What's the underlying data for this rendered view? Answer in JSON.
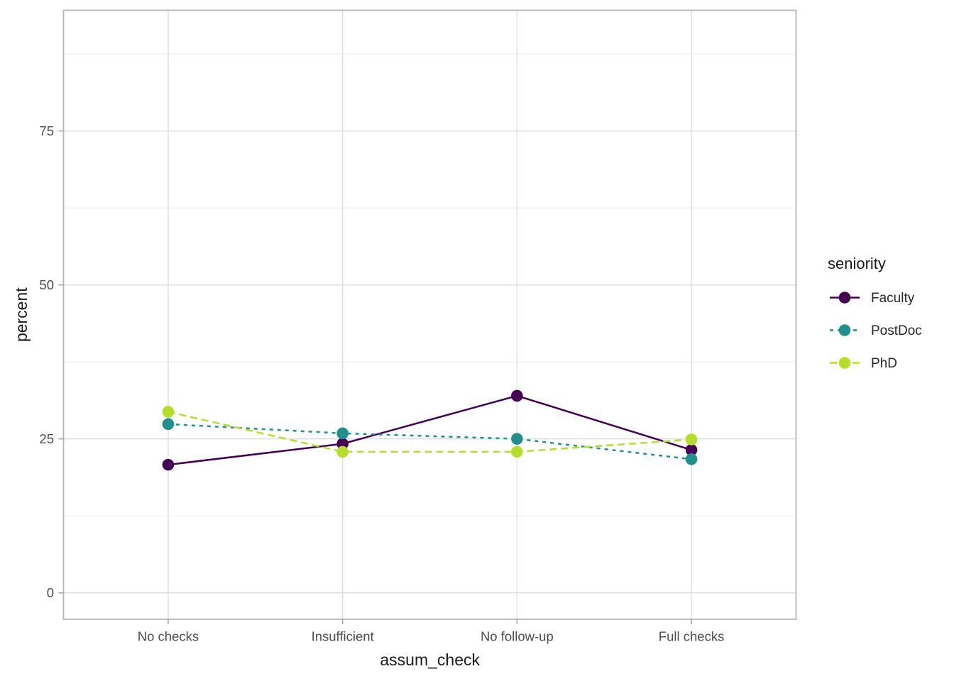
{
  "chart_data": {
    "type": "line",
    "title": "",
    "xlabel": "assum_check",
    "ylabel": "percent",
    "categories": [
      "No checks",
      "Insufficient",
      "No follow-up",
      "Full checks"
    ],
    "series": [
      {
        "name": "Faculty",
        "values": [
          20.8,
          24.2,
          32.0,
          23.2
        ],
        "color": "#440154",
        "linestyle": "solid"
      },
      {
        "name": "PostDoc",
        "values": [
          27.4,
          25.9,
          25.0,
          21.7
        ],
        "color": "#21908C",
        "linestyle": "dotted"
      },
      {
        "name": "PhD",
        "values": [
          29.4,
          22.9,
          22.9,
          24.9
        ],
        "color": "#B5DE2B",
        "linestyle": "dashed"
      }
    ],
    "y_ticks": [
      0,
      25,
      50,
      75
    ],
    "y_minor_ticks": [
      12.5,
      37.5,
      62.5,
      87.5
    ],
    "ylim": [
      -4.3,
      94.6
    ],
    "grid": "on",
    "legend": {
      "title": "seniority",
      "position": "right"
    }
  }
}
